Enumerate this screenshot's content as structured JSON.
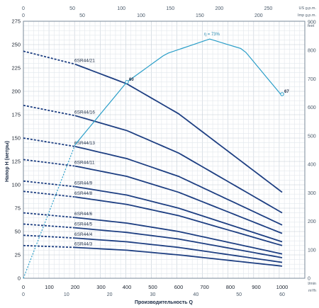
{
  "chart_data": {
    "type": "line",
    "xlabel": "Производительность Q",
    "ylabel": "Напор H (метры)",
    "x_unit_bottom": "l/min",
    "x_unit_bottom_2": "m³/h",
    "x_unit_top": "US g.p.m.",
    "x_unit_top_2": "Imp g.p.m.",
    "y_unit_right": "feet",
    "xlim": [
      0,
      1000
    ],
    "ylim": [
      0,
      275
    ],
    "x_ticks_lmin": [
      "0",
      "100",
      "200",
      "300",
      "400",
      "500",
      "600",
      "700",
      "800",
      "900",
      "1000"
    ],
    "x_ticks_m3h": [
      "0",
      "10",
      "20",
      "30",
      "40",
      "50",
      "60"
    ],
    "top_ticks_us": [
      "0",
      "50",
      "100",
      "150",
      "200",
      "250"
    ],
    "top_ticks_imp": [
      "0",
      "50",
      "100",
      "150",
      "200"
    ],
    "y_ticks": [
      "0",
      "25",
      "50",
      "75",
      "100",
      "125",
      "150",
      "175",
      "200",
      "225",
      "250",
      "275"
    ],
    "y_ticks_feet": [
      "0",
      "100",
      "200",
      "300",
      "400",
      "500",
      "600",
      "700",
      "800",
      "900"
    ],
    "grid": true,
    "series": [
      {
        "name": "6SR44/21",
        "x": [
          0,
          200,
          400,
          600,
          800,
          1000
        ],
        "y": [
          243,
          229,
          208,
          176,
          134,
          92
        ]
      },
      {
        "name": "6SR44/16",
        "x": [
          0,
          200,
          400,
          600,
          800,
          1000
        ],
        "y": [
          185,
          174,
          158,
          134,
          102,
          70
        ]
      },
      {
        "name": "6SR44/13",
        "x": [
          0,
          200,
          400,
          600,
          800,
          1000
        ],
        "y": [
          150,
          141,
          128,
          109,
          83,
          57
        ]
      },
      {
        "name": "6SR44/11",
        "x": [
          0,
          200,
          400,
          600,
          800,
          1000
        ],
        "y": [
          127,
          120,
          109,
          92,
          70,
          48
        ]
      },
      {
        "name": "6SR44/9",
        "x": [
          0,
          200,
          400,
          600,
          800,
          1000
        ],
        "y": [
          104,
          98,
          89,
          75,
          57,
          39
        ]
      },
      {
        "name": "6SR44/8",
        "x": [
          0,
          200,
          400,
          600,
          800,
          1000
        ],
        "y": [
          93,
          87,
          79,
          67,
          51,
          35
        ]
      },
      {
        "name": "6SR44/6",
        "x": [
          0,
          200,
          400,
          600,
          800,
          1000
        ],
        "y": [
          70,
          65,
          59,
          50,
          38,
          26
        ]
      },
      {
        "name": "6SR44/5",
        "x": [
          0,
          200,
          400,
          600,
          800,
          1000
        ],
        "y": [
          58,
          54,
          49,
          42,
          32,
          22
        ]
      },
      {
        "name": "6SR44/4",
        "x": [
          0,
          200,
          400,
          600,
          800,
          1000
        ],
        "y": [
          46,
          43,
          39,
          33,
          25,
          17
        ]
      },
      {
        "name": "6SR44/3",
        "x": [
          0,
          200,
          400,
          600,
          800,
          1000
        ],
        "y": [
          35,
          33,
          30,
          25,
          19,
          13
        ]
      }
    ],
    "efficiency_curve": {
      "label": "η = 73%",
      "x": [
        0,
        200,
        400,
        550,
        720,
        850,
        1000
      ],
      "y": [
        0,
        143,
        210,
        240,
        256,
        245,
        195
      ],
      "markers": [
        {
          "label": "60",
          "x": 400,
          "y": 210
        },
        {
          "label": "67",
          "x": 1000,
          "y": 197
        }
      ]
    }
  }
}
